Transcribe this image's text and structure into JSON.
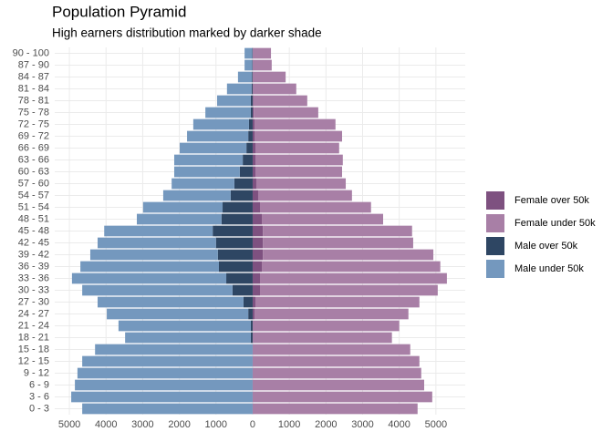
{
  "chart_data": {
    "type": "bar",
    "orientation": "horizontal",
    "stacked": true,
    "title": "Population Pyramid",
    "subtitle": "High earners distribution marked by darker shade",
    "categories": [
      "0 - 3",
      "3 - 6",
      "6 - 9",
      "9 - 12",
      "12 - 15",
      "15 - 18",
      "18 - 21",
      "21 - 24",
      "24 - 27",
      "27 - 30",
      "30 - 33",
      "33 - 36",
      "36 - 39",
      "39 - 42",
      "42 - 45",
      "45 - 48",
      "48 - 51",
      "51 - 54",
      "54 - 57",
      "57 - 60",
      "60 - 63",
      "63 - 66",
      "66 - 69",
      "69 - 72",
      "72 - 75",
      "75 - 78",
      "78 - 81",
      "81 - 84",
      "84 - 87",
      "87 - 90",
      "90 - 100"
    ],
    "series": [
      {
        "name": "Female over 50k",
        "color": "#7e5180",
        "values": [
          0,
          0,
          0,
          0,
          0,
          0,
          0,
          0,
          50,
          75,
          200,
          200,
          250,
          280,
          280,
          280,
          250,
          200,
          150,
          100,
          75,
          75,
          75,
          60,
          50,
          30,
          20,
          0,
          0,
          0,
          0
        ]
      },
      {
        "name": "Female under 50k",
        "color": "#a87fa6",
        "values": [
          4500,
          4900,
          4680,
          4600,
          4550,
          4300,
          3800,
          4000,
          4200,
          4475,
          4850,
          5100,
          4870,
          4650,
          4100,
          4070,
          3310,
          3030,
          2560,
          2440,
          2365,
          2385,
          2285,
          2380,
          2210,
          1760,
          1470,
          1190,
          900,
          520,
          500
        ]
      },
      {
        "name": "Male over 50k",
        "color": "#2e4663",
        "values": [
          0,
          0,
          0,
          0,
          0,
          0,
          -50,
          -50,
          -120,
          -250,
          -550,
          -720,
          -920,
          -950,
          -1000,
          -1090,
          -850,
          -820,
          -600,
          -500,
          -350,
          -270,
          -170,
          -120,
          -100,
          -50,
          -50,
          -30,
          -20,
          -10,
          -10
        ]
      },
      {
        "name": "Male under 50k",
        "color": "#7498be",
        "values": [
          -4650,
          -4950,
          -4850,
          -4780,
          -4650,
          -4300,
          -3430,
          -3610,
          -3860,
          -3980,
          -4100,
          -4210,
          -3780,
          -3480,
          -3230,
          -2960,
          -2310,
          -2170,
          -1840,
          -1710,
          -1790,
          -1870,
          -1820,
          -1670,
          -1520,
          -1240,
          -920,
          -670,
          -380,
          -210,
          -210
        ]
      }
    ],
    "xlim": [
      -5400,
      5800
    ],
    "xticks": [
      {
        "value": -5000,
        "label": "5000"
      },
      {
        "value": -4000,
        "label": "4000"
      },
      {
        "value": -3000,
        "label": "3000"
      },
      {
        "value": -2000,
        "label": "2000"
      },
      {
        "value": -1000,
        "label": "1000"
      },
      0,
      1000,
      2000,
      3000,
      4000,
      5000
    ],
    "grid": true,
    "legend": "right"
  }
}
